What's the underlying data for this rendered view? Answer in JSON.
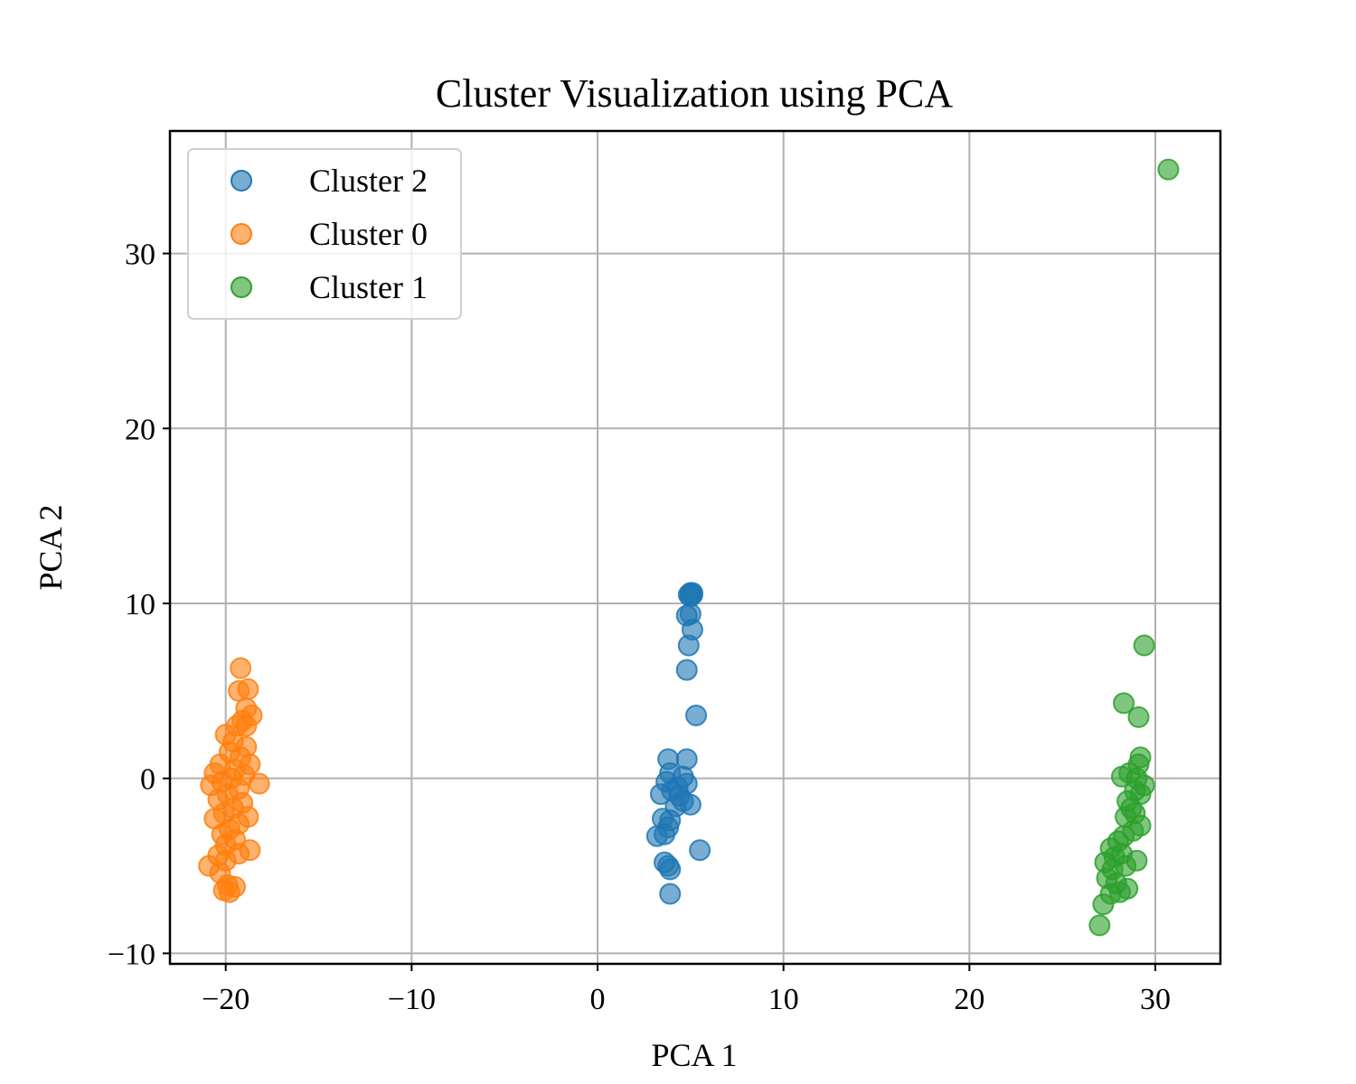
{
  "chart_data": {
    "type": "scatter",
    "title": "Cluster Visualization using PCA",
    "xlabel": "PCA 1",
    "ylabel": "PCA 2",
    "xlim": [
      -23,
      33.5
    ],
    "ylim": [
      -10.6,
      37.0
    ],
    "xticks": [
      -20,
      -10,
      0,
      10,
      20,
      30
    ],
    "yticks": [
      -10,
      0,
      10,
      20,
      30
    ],
    "grid": true,
    "legend_position": "top-left",
    "marker_alpha": 0.6,
    "series": [
      {
        "name": "Cluster 2",
        "color": "#1f77b4",
        "points": [
          [
            5.0,
            10.6
          ],
          [
            5.1,
            10.5
          ],
          [
            5.0,
            10.4
          ],
          [
            4.9,
            10.5
          ],
          [
            5.1,
            10.6
          ],
          [
            4.8,
            9.3
          ],
          [
            5.0,
            9.4
          ],
          [
            5.1,
            8.5
          ],
          [
            4.9,
            7.6
          ],
          [
            4.8,
            6.2
          ],
          [
            5.3,
            3.6
          ],
          [
            3.8,
            1.1
          ],
          [
            4.8,
            1.1
          ],
          [
            3.9,
            0.3
          ],
          [
            4.6,
            0.1
          ],
          [
            3.7,
            -0.2
          ],
          [
            4.3,
            -0.5
          ],
          [
            4.8,
            -0.3
          ],
          [
            4.0,
            -0.7
          ],
          [
            3.4,
            -0.9
          ],
          [
            4.4,
            -1.0
          ],
          [
            4.6,
            -1.3
          ],
          [
            5.0,
            -1.5
          ],
          [
            4.2,
            -1.6
          ],
          [
            3.5,
            -2.3
          ],
          [
            3.9,
            -2.4
          ],
          [
            3.8,
            -2.8
          ],
          [
            3.2,
            -3.3
          ],
          [
            3.6,
            -3.2
          ],
          [
            5.5,
            -4.1
          ],
          [
            3.6,
            -4.8
          ],
          [
            3.9,
            -5.2
          ],
          [
            3.8,
            -5.0
          ],
          [
            3.9,
            -6.6
          ]
        ]
      },
      {
        "name": "Cluster 0",
        "color": "#ff7f0e",
        "points": [
          [
            -19.2,
            6.3
          ],
          [
            -18.8,
            5.1
          ],
          [
            -19.3,
            5.0
          ],
          [
            -18.9,
            4.0
          ],
          [
            -18.6,
            3.6
          ],
          [
            -19.1,
            3.3
          ],
          [
            -18.9,
            3.0
          ],
          [
            -19.4,
            3.0
          ],
          [
            -20.0,
            2.5
          ],
          [
            -19.6,
            2.1
          ],
          [
            -18.9,
            1.8
          ],
          [
            -19.8,
            1.5
          ],
          [
            -19.2,
            1.2
          ],
          [
            -20.3,
            0.8
          ],
          [
            -18.7,
            0.8
          ],
          [
            -19.5,
            0.5
          ],
          [
            -20.6,
            0.3
          ],
          [
            -19.0,
            0.2
          ],
          [
            -19.7,
            0.0
          ],
          [
            -20.2,
            -0.2
          ],
          [
            -20.8,
            -0.4
          ],
          [
            -18.2,
            -0.3
          ],
          [
            -19.3,
            -0.6
          ],
          [
            -19.9,
            -0.9
          ],
          [
            -20.4,
            -1.2
          ],
          [
            -19.1,
            -1.4
          ],
          [
            -19.6,
            -1.7
          ],
          [
            -20.1,
            -2.0
          ],
          [
            -18.8,
            -2.2
          ],
          [
            -20.6,
            -2.3
          ],
          [
            -19.3,
            -2.6
          ],
          [
            -19.8,
            -2.9
          ],
          [
            -20.2,
            -3.2
          ],
          [
            -19.5,
            -3.5
          ],
          [
            -20.0,
            -3.8
          ],
          [
            -18.7,
            -4.1
          ],
          [
            -19.3,
            -4.3
          ],
          [
            -20.4,
            -4.4
          ],
          [
            -20.0,
            -4.7
          ],
          [
            -20.9,
            -5.0
          ],
          [
            -20.3,
            -5.4
          ],
          [
            -19.9,
            -6.1
          ],
          [
            -19.5,
            -6.2
          ],
          [
            -20.1,
            -6.4
          ],
          [
            -19.8,
            -6.5
          ]
        ]
      },
      {
        "name": "Cluster 1",
        "color": "#2ca02c",
        "points": [
          [
            30.7,
            34.8
          ],
          [
            29.4,
            7.6
          ],
          [
            28.3,
            4.3
          ],
          [
            29.1,
            3.5
          ],
          [
            29.2,
            1.2
          ],
          [
            29.1,
            0.8
          ],
          [
            28.6,
            0.3
          ],
          [
            28.2,
            0.1
          ],
          [
            29.0,
            0.0
          ],
          [
            29.4,
            -0.4
          ],
          [
            28.9,
            -0.7
          ],
          [
            29.2,
            -0.9
          ],
          [
            28.5,
            -1.3
          ],
          [
            28.7,
            -1.7
          ],
          [
            28.9,
            -2.0
          ],
          [
            28.4,
            -2.2
          ],
          [
            29.2,
            -2.7
          ],
          [
            28.8,
            -3.0
          ],
          [
            28.3,
            -3.3
          ],
          [
            28.0,
            -3.6
          ],
          [
            27.6,
            -4.0
          ],
          [
            28.2,
            -4.3
          ],
          [
            27.8,
            -4.5
          ],
          [
            27.3,
            -4.8
          ],
          [
            29.0,
            -4.7
          ],
          [
            28.4,
            -5.0
          ],
          [
            27.7,
            -5.2
          ],
          [
            27.4,
            -5.7
          ],
          [
            27.9,
            -6.0
          ],
          [
            28.5,
            -6.3
          ],
          [
            28.1,
            -6.5
          ],
          [
            27.6,
            -6.6
          ],
          [
            27.2,
            -7.2
          ],
          [
            27.0,
            -8.4
          ]
        ]
      }
    ]
  }
}
